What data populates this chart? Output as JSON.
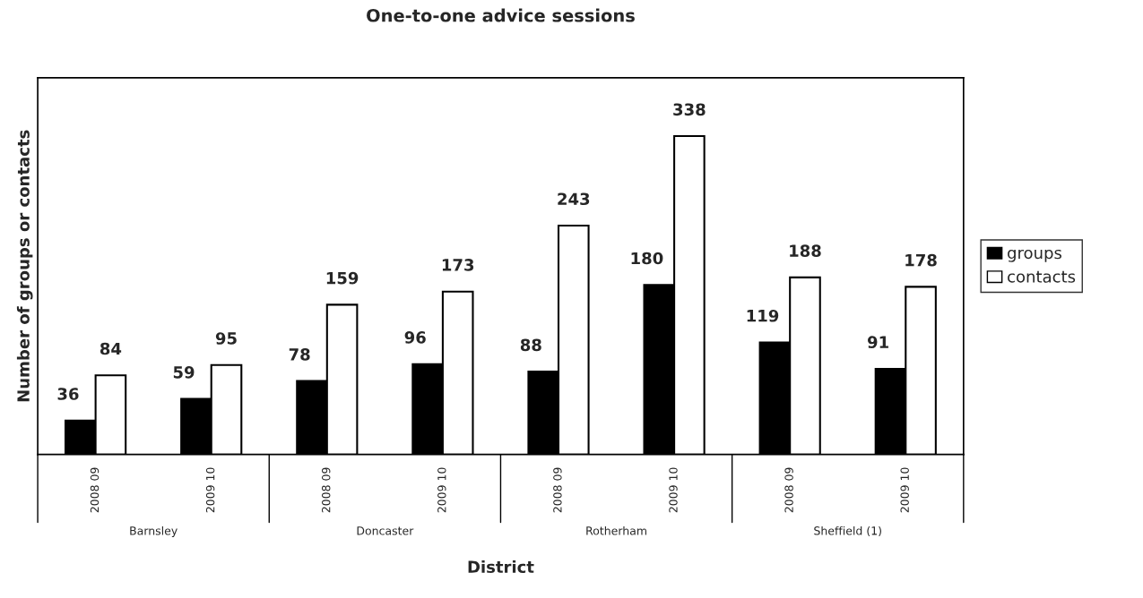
{
  "chart_data": {
    "type": "bar",
    "title": "One-to-one advice sessions",
    "xlabel": "District",
    "ylabel": "Number of groups or contacts",
    "categories": [
      "2008 09",
      "2009 10",
      "2008 09",
      "2009 10",
      "2008 09",
      "2009 10",
      "2008 09",
      "2009 10"
    ],
    "annotations": [
      "Barnsley",
      "Doncaster",
      "Rotherham",
      "Sheffield (1)"
    ],
    "series": [
      {
        "name": "groups",
        "color": "#000000",
        "values": [
          36,
          59,
          78,
          96,
          88,
          180,
          119,
          91
        ]
      },
      {
        "name": "contacts",
        "color": "#ffffff",
        "values": [
          84,
          95,
          159,
          173,
          243,
          338,
          188,
          178
        ]
      }
    ],
    "ylim": [
      0,
      400
    ],
    "tick_labels": "x",
    "data_labels": true,
    "legend": "right",
    "grid": false
  }
}
